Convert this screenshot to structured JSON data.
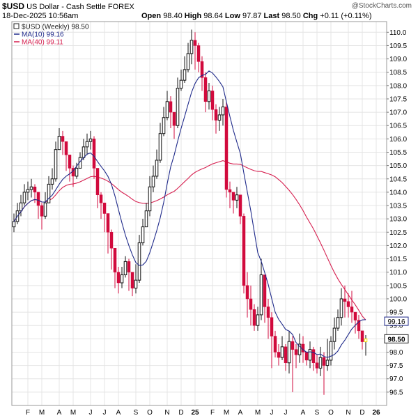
{
  "header": {
    "symbol": "$USD",
    "name": "US Dollar - Cash Settle",
    "exchange": "FOREX",
    "source": "@StockCharts.com",
    "date": "18-Dec-2025 10:56am",
    "open_label": "Open",
    "open": "98.40",
    "high_label": "High",
    "high": "98.64",
    "low_label": "Low",
    "low": "97.87",
    "last_label": "Last",
    "last": "98.50",
    "chg_label": "Chg",
    "chg": "+0.11 (+0.11%)"
  },
  "legend": [
    {
      "label": "$USD (Weekly) 98.50",
      "color": "#222222",
      "swatch": "box"
    },
    {
      "label": "MA(10) 99.16",
      "color": "#1f2a8a",
      "swatch": "line"
    },
    {
      "label": "MA(40) 99.11",
      "color": "#d61f4f",
      "swatch": "line"
    }
  ],
  "colors": {
    "up": "#111111",
    "down": "#d10a3d",
    "ma10": "#1f2a8a",
    "ma40": "#d61f4f",
    "grid": "#e4e4e4",
    "current": "#f5e600"
  },
  "chart_data": {
    "type": "candlestick",
    "interval": "weekly",
    "ylim": [
      96.0,
      110.4
    ],
    "y_ticks": [
      "96.5",
      "97.0",
      "97.5",
      "98.0",
      "98.5",
      "99.0",
      "99.5",
      "100.0",
      "100.5",
      "101.0",
      "101.5",
      "102.0",
      "102.5",
      "103.0",
      "103.5",
      "104.0",
      "104.5",
      "105.0",
      "105.5",
      "106.0",
      "106.5",
      "107.0",
      "107.5",
      "108.0",
      "108.5",
      "109.0",
      "109.5",
      "110.0"
    ],
    "x_ticks": [
      {
        "label": "F",
        "week": 4
      },
      {
        "label": "M",
        "week": 8
      },
      {
        "label": "A",
        "week": 13
      },
      {
        "label": "M",
        "week": 17
      },
      {
        "label": "J",
        "week": 22
      },
      {
        "label": "J",
        "week": 26
      },
      {
        "label": "A",
        "week": 30
      },
      {
        "label": "S",
        "week": 35
      },
      {
        "label": "O",
        "week": 39
      },
      {
        "label": "N",
        "week": 44
      },
      {
        "label": "D",
        "week": 48
      },
      {
        "label": "25",
        "week": 52
      },
      {
        "label": "F",
        "week": 57
      },
      {
        "label": "M",
        "week": 61
      },
      {
        "label": "A",
        "week": 65
      },
      {
        "label": "M",
        "week": 70
      },
      {
        "label": "J",
        "week": 74
      },
      {
        "label": "J",
        "week": 78
      },
      {
        "label": "A",
        "week": 83
      },
      {
        "label": "S",
        "week": 87
      },
      {
        "label": "O",
        "week": 91
      },
      {
        "label": "N",
        "week": 96
      },
      {
        "label": "D",
        "week": 100
      },
      {
        "label": "26",
        "week": 104
      }
    ],
    "closes": [
      102.9,
      103.3,
      103.6,
      104.0,
      104.1,
      104.2,
      104.0,
      103.5,
      103.1,
      103.6,
      104.3,
      104.5,
      105.6,
      106.1,
      105.9,
      105.4,
      104.9,
      104.6,
      104.9,
      105.3,
      105.7,
      105.9,
      106.0,
      104.9,
      103.9,
      103.6,
      103.2,
      102.5,
      101.9,
      101.0,
      100.6,
      100.9,
      101.4,
      101.0,
      100.4,
      100.7,
      102.1,
      102.7,
      103.3,
      104.2,
      104.6,
      105.2,
      106.2,
      106.8,
      107.4,
      107.0,
      106.5,
      107.9,
      108.2,
      108.6,
      109.2,
      109.7,
      109.5,
      108.9,
      108.3,
      107.4,
      107.8,
      107.1,
      106.7,
      106.9,
      107.2,
      104.1,
      104.0,
      103.7,
      103.9,
      103.1,
      100.5,
      100.0,
      99.6,
      99.0,
      99.4,
      100.9,
      99.7,
      99.3,
      98.6,
      98.0,
      97.8,
      98.2,
      97.6,
      98.4,
      98.1,
      97.9,
      98.3,
      98.0,
      97.7,
      98.1,
      97.6,
      97.4,
      97.8,
      97.5,
      97.7,
      98.4,
      98.9,
      99.3,
      100.0,
      99.9,
      99.7,
      99.5,
      99.2,
      98.8,
      98.39,
      98.5
    ],
    "highs": [
      103.2,
      103.6,
      103.9,
      104.3,
      104.4,
      104.5,
      104.3,
      103.8,
      103.6,
      104.0,
      104.6,
      104.9,
      105.9,
      106.4,
      106.3,
      105.8,
      105.2,
      105.0,
      105.1,
      105.5,
      106.0,
      106.2,
      106.3,
      106.1,
      104.2,
      104.0,
      103.6,
      103.0,
      102.6,
      101.7,
      101.2,
      101.2,
      101.6,
      101.5,
      101.0,
      101.3,
      102.4,
      103.0,
      103.6,
      104.6,
      105.0,
      105.6,
      106.6,
      107.2,
      107.8,
      107.6,
      106.9,
      108.3,
      108.6,
      109.1,
      109.6,
      110.1,
      110.0,
      109.6,
      109.1,
      108.5,
      108.1,
      108.0,
      107.3,
      107.2,
      107.5,
      107.4,
      104.4,
      104.0,
      104.2,
      103.9,
      103.2,
      101.0,
      100.5,
      99.8,
      99.7,
      101.5,
      100.5,
      100.0,
      99.5,
      98.8,
      98.3,
      98.6,
      98.3,
      98.8,
      98.6,
      98.3,
      98.7,
      98.6,
      98.0,
      98.4,
      98.2,
      97.9,
      98.2,
      98.0,
      98.5,
      98.6,
      99.3,
      99.6,
      100.4,
      100.5,
      100.2,
      100.3,
      99.5,
      99.4,
      98.7,
      98.64
    ],
    "lows": [
      102.5,
      102.8,
      103.1,
      103.5,
      103.7,
      103.8,
      103.6,
      103.0,
      102.6,
      103.0,
      103.9,
      104.1,
      104.4,
      105.6,
      105.4,
      104.8,
      104.4,
      104.2,
      104.5,
      104.9,
      105.2,
      105.4,
      105.6,
      104.5,
      103.4,
      103.0,
      102.5,
      101.7,
      101.1,
      100.4,
      100.2,
      100.4,
      100.8,
      100.3,
      100.1,
      100.2,
      100.6,
      102.0,
      102.7,
      103.1,
      104.0,
      104.5,
      105.1,
      106.1,
      106.7,
      106.4,
      106.0,
      106.4,
      107.8,
      108.1,
      108.5,
      108.8,
      108.6,
      108.5,
      107.8,
      107.0,
      107.1,
      106.7,
      106.2,
      106.3,
      106.5,
      103.8,
      103.4,
      103.2,
      103.4,
      102.8,
      100.2,
      99.3,
      99.0,
      98.8,
      98.8,
      99.2,
      99.1,
      98.5,
      97.4,
      97.8,
      97.5,
      97.7,
      97.3,
      97.2,
      96.5,
      97.4,
      97.6,
      97.6,
      97.5,
      97.4,
      97.3,
      97.2,
      97.1,
      96.4,
      97.3,
      97.5,
      98.1,
      98.8,
      99.0,
      99.3,
      99.3,
      99.1,
      98.7,
      98.5,
      98.1,
      97.87
    ],
    "ma10_last": 99.16,
    "ma40_last": 99.11,
    "last_price": 98.5
  }
}
